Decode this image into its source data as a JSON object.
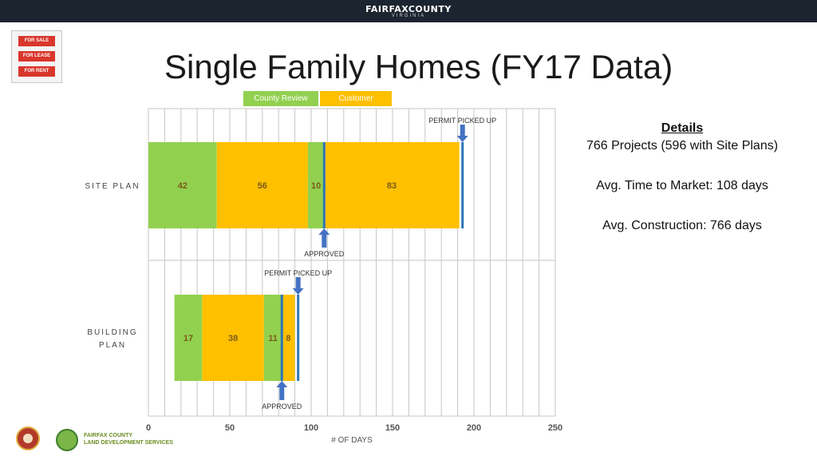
{
  "header": {
    "brand": "FAIRFAXCOUNTY",
    "sub": "VIRGINIA"
  },
  "signs": [
    "FOR SALE",
    "FOR LEASE",
    "FOR RENT"
  ],
  "title": "Single Family Homes (FY17 Data)",
  "legend": [
    {
      "label": "County Review",
      "color": "#92d050"
    },
    {
      "label": "Customer",
      "color": "#ffc000"
    }
  ],
  "details": {
    "heading": "Details",
    "projects": "766 Projects (596 with Site Plans)",
    "time_to_market": "Avg. Time to Market: 108 days",
    "construction": "Avg. Construction: 766 days"
  },
  "footer": {
    "lds_line1": "FAIRFAX COUNTY",
    "lds_line2": "LAND DEVELOPMENT SERVICES"
  },
  "chart_data": {
    "type": "bar",
    "orientation": "horizontal",
    "stacked": true,
    "xlabel": "# OF DAYS",
    "xlim": [
      0,
      250
    ],
    "xticks": [
      0,
      50,
      100,
      150,
      200,
      250
    ],
    "grid": "vertical every 10",
    "legend_position": "top",
    "categories": [
      "SITE PLAN",
      "BUILDING PLAN"
    ],
    "bars": [
      {
        "category": "SITE PLAN",
        "start": 0,
        "segments": [
          {
            "value": 42,
            "type": "County Review"
          },
          {
            "value": 56,
            "type": "Customer"
          },
          {
            "value": 10,
            "type": "County Review"
          },
          {
            "value": 83,
            "type": "Customer"
          }
        ],
        "markers": [
          {
            "label": "APPROVED",
            "x": 108,
            "position": "below"
          },
          {
            "label": "PERMIT PICKED UP",
            "x": 193,
            "position": "above"
          }
        ]
      },
      {
        "category": "BUILDING PLAN",
        "start": 16,
        "segments": [
          {
            "value": 17,
            "type": "County Review"
          },
          {
            "value": 38,
            "type": "Customer"
          },
          {
            "value": 11,
            "type": "County Review"
          },
          {
            "value": 8,
            "type": "Customer"
          }
        ],
        "markers": [
          {
            "label": "APPROVED",
            "x": 82,
            "position": "below"
          },
          {
            "label": "PERMIT PICKED UP",
            "x": 92,
            "position": "above"
          }
        ]
      }
    ]
  }
}
